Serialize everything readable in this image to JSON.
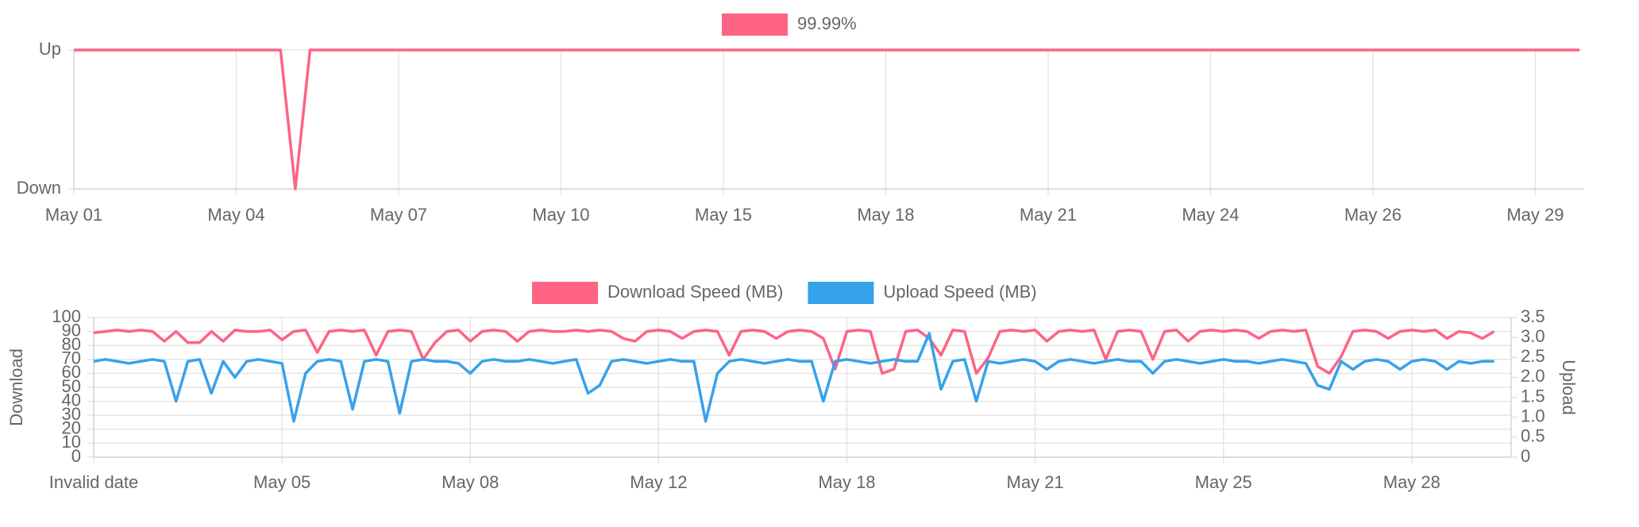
{
  "chart_data": [
    {
      "type": "line",
      "categories": [
        "May 01",
        null,
        null,
        null,
        null,
        null,
        null,
        null,
        null,
        null,
        null,
        "May 04",
        null,
        null,
        null,
        null,
        null,
        null,
        null,
        null,
        null,
        null,
        "May 07",
        null,
        null,
        null,
        null,
        null,
        null,
        null,
        null,
        null,
        null,
        "May 10",
        null,
        null,
        null,
        null,
        null,
        null,
        null,
        null,
        null,
        null,
        "May 15",
        null,
        null,
        null,
        null,
        null,
        null,
        null,
        null,
        null,
        null,
        "May 18",
        null,
        null,
        null,
        null,
        null,
        null,
        null,
        null,
        null,
        null,
        "May 21",
        null,
        null,
        null,
        null,
        null,
        null,
        null,
        null,
        null,
        null,
        "May 24",
        null,
        null,
        null,
        null,
        null,
        null,
        null,
        null,
        null,
        null,
        "May 26",
        null,
        null,
        null,
        null,
        null,
        null,
        null,
        null,
        null,
        null,
        "May 29",
        null,
        null,
        null
      ],
      "series": [
        {
          "name": "99.99%",
          "color": "#ff6384",
          "values": [
            1,
            1,
            1,
            1,
            1,
            1,
            1,
            1,
            1,
            1,
            1,
            1,
            1,
            1,
            1,
            0,
            1,
            1,
            1,
            1,
            1,
            1,
            1,
            1,
            1,
            1,
            1,
            1,
            1,
            1,
            1,
            1,
            1,
            1,
            1,
            1,
            1,
            1,
            1,
            1,
            1,
            1,
            1,
            1,
            1,
            1,
            1,
            1,
            1,
            1,
            1,
            1,
            1,
            1,
            1,
            1,
            1,
            1,
            1,
            1,
            1,
            1,
            1,
            1,
            1,
            1,
            1,
            1,
            1,
            1,
            1,
            1,
            1,
            1,
            1,
            1,
            1,
            1,
            1,
            1,
            1,
            1,
            1,
            1,
            1,
            1,
            1,
            1,
            1,
            1,
            1,
            1,
            1,
            1,
            1,
            1,
            1,
            1,
            1,
            1,
            1,
            1,
            1
          ]
        }
      ],
      "ylim": [
        0,
        1
      ],
      "yticks": [
        {
          "value": 0,
          "label": "Down"
        },
        {
          "value": 1,
          "label": "Up"
        }
      ],
      "grid": true,
      "legend": "top"
    },
    {
      "type": "line",
      "ylabel": "Download",
      "y2label": "Upload",
      "categories": [
        "Invalid date",
        null,
        null,
        null,
        null,
        null,
        null,
        null,
        null,
        null,
        null,
        null,
        null,
        null,
        null,
        null,
        "May 05",
        null,
        null,
        null,
        null,
        null,
        null,
        null,
        null,
        null,
        null,
        null,
        null,
        null,
        null,
        null,
        "May 08",
        null,
        null,
        null,
        null,
        null,
        null,
        null,
        null,
        null,
        null,
        null,
        null,
        null,
        null,
        null,
        "May 12",
        null,
        null,
        null,
        null,
        null,
        null,
        null,
        null,
        null,
        null,
        null,
        null,
        null,
        null,
        null,
        "May 18",
        null,
        null,
        null,
        null,
        null,
        null,
        null,
        null,
        null,
        null,
        null,
        null,
        null,
        null,
        null,
        "May 21",
        null,
        null,
        null,
        null,
        null,
        null,
        null,
        null,
        null,
        null,
        null,
        null,
        null,
        null,
        null,
        "May 25",
        null,
        null,
        null,
        null,
        null,
        null,
        null,
        null,
        null,
        null,
        null,
        null,
        null,
        null,
        null,
        "May 28",
        null,
        null,
        null,
        null,
        null,
        null,
        null
      ],
      "series": [
        {
          "name": "Download Speed (MB)",
          "color": "#ff6384",
          "values": [
            89,
            90,
            91,
            90,
            91,
            90,
            83,
            90,
            82,
            82,
            90,
            83,
            91,
            90,
            90,
            91,
            84,
            90,
            91,
            75,
            90,
            91,
            90,
            91,
            73,
            90,
            91,
            90,
            70,
            82,
            90,
            91,
            83,
            90,
            91,
            90,
            83,
            90,
            91,
            90,
            90,
            91,
            90,
            91,
            90,
            85,
            83,
            90,
            91,
            90,
            85,
            90,
            91,
            90,
            73,
            90,
            91,
            90,
            85,
            90,
            91,
            90,
            85,
            63,
            90,
            91,
            90,
            60,
            63,
            90,
            91,
            85,
            73,
            91,
            90,
            60,
            71,
            90,
            91,
            90,
            91,
            83,
            90,
            91,
            90,
            91,
            70,
            90,
            91,
            90,
            70,
            90,
            91,
            83,
            90,
            91,
            90,
            91,
            90,
            85,
            90,
            91,
            90,
            91,
            65,
            60,
            72,
            90,
            91,
            90,
            85,
            90,
            91,
            90,
            91,
            85,
            90,
            89,
            85,
            90
          ]
        },
        {
          "name": "Upload Speed (MB)",
          "color": "#36a2eb",
          "axis": "y2",
          "values": [
            2.4,
            2.45,
            2.4,
            2.35,
            2.4,
            2.45,
            2.4,
            1.4,
            2.4,
            2.45,
            1.6,
            2.4,
            2.0,
            2.4,
            2.45,
            2.4,
            2.35,
            0.9,
            2.1,
            2.4,
            2.45,
            2.4,
            1.2,
            2.4,
            2.45,
            2.4,
            1.1,
            2.4,
            2.45,
            2.4,
            2.4,
            2.35,
            2.1,
            2.4,
            2.45,
            2.4,
            2.4,
            2.45,
            2.4,
            2.35,
            2.4,
            2.45,
            1.6,
            1.8,
            2.4,
            2.45,
            2.4,
            2.35,
            2.4,
            2.45,
            2.4,
            2.4,
            0.9,
            2.1,
            2.4,
            2.45,
            2.4,
            2.35,
            2.4,
            2.45,
            2.4,
            2.4,
            1.4,
            2.4,
            2.45,
            2.4,
            2.35,
            2.4,
            2.45,
            2.4,
            2.4,
            3.1,
            1.7,
            2.4,
            2.45,
            1.4,
            2.4,
            2.35,
            2.4,
            2.45,
            2.4,
            2.2,
            2.4,
            2.45,
            2.4,
            2.35,
            2.4,
            2.45,
            2.4,
            2.4,
            2.1,
            2.4,
            2.45,
            2.4,
            2.35,
            2.4,
            2.45,
            2.4,
            2.4,
            2.35,
            2.4,
            2.45,
            2.4,
            2.35,
            1.8,
            1.7,
            2.4,
            2.2,
            2.4,
            2.45,
            2.4,
            2.2,
            2.4,
            2.45,
            2.4,
            2.2,
            2.4,
            2.35,
            2.4,
            2.4
          ]
        }
      ],
      "ylim": [
        0,
        100
      ],
      "yticks": [
        0,
        10,
        20,
        30,
        40,
        50,
        60,
        70,
        80,
        90,
        100
      ],
      "y2lim": [
        0,
        3.5
      ],
      "y2ticks": [
        0,
        0.5,
        {
          "value": 1,
          "label": "1.0"
        },
        1.5,
        {
          "value": 2,
          "label": "2.0"
        },
        2.5,
        {
          "value": 3,
          "label": "3.0"
        },
        3.5
      ],
      "grid": true,
      "legend": "top"
    }
  ]
}
